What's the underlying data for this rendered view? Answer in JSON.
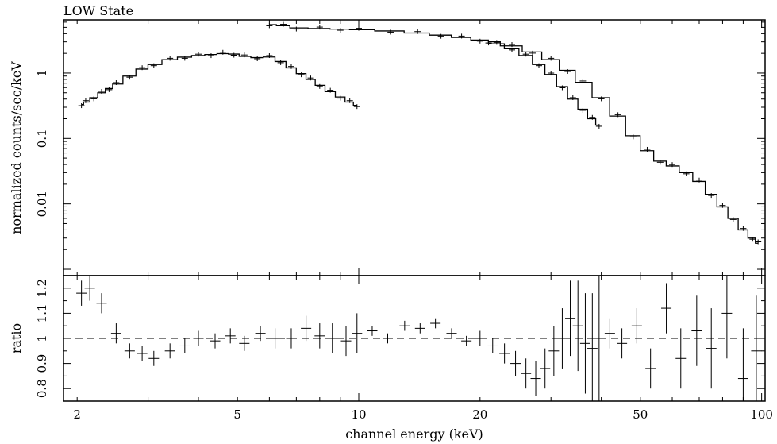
{
  "chart_data": {
    "type": "scatter",
    "title": "LOW State",
    "xlabel": "channel energy (keV)",
    "x_scale": "log",
    "xlim": [
      1.85,
      102
    ],
    "x_ticks": [
      "2",
      "5",
      "10",
      "20",
      "50",
      "100"
    ],
    "panels": [
      {
        "name": "spectrum",
        "ylabel": "normalized counts/sec/keV",
        "y_scale": "log",
        "ylim": [
          0.0008,
          6.5
        ],
        "y_ticks": [
          "0.01",
          "0.1",
          "1"
        ],
        "series": [
          {
            "name": "",
            "x": [
              2.05,
              2.1,
              2.2,
              2.3,
              2.4,
              2.5,
              2.7,
              2.9,
              3.1,
              3.4,
              3.7,
              4.0,
              4.3,
              4.6,
              4.9,
              5.2,
              5.6,
              6.0,
              6.4,
              6.8,
              7.2,
              7.6,
              8.0,
              8.5,
              9.0,
              9.5,
              9.9
            ],
            "y": [
              0.33,
              0.36,
              0.42,
              0.5,
              0.58,
              0.68,
              0.9,
              1.15,
              1.35,
              1.6,
              1.75,
              1.85,
              1.92,
              1.98,
              1.95,
              1.8,
              1.72,
              1.76,
              1.5,
              1.2,
              0.98,
              0.8,
              0.65,
              0.52,
              0.43,
              0.36,
              0.32
            ]
          },
          {
            "name": "",
            "x": [
              6.0,
              6.5,
              7.0,
              8.0,
              9.0,
              10.0,
              12.0,
              14.0,
              16.0,
              18.0,
              20.0,
              22.0,
              24.0,
              26.0,
              28.0,
              30.0,
              32.0,
              34.0,
              36.0,
              38.0,
              39.5
            ],
            "y": [
              5.5,
              5.3,
              4.9,
              4.8,
              4.7,
              4.6,
              4.4,
              4.1,
              3.8,
              3.5,
              3.2,
              2.8,
              2.35,
              1.85,
              1.35,
              0.95,
              0.62,
              0.4,
              0.28,
              0.2,
              0.16
            ]
          },
          {
            "name": "",
            "x": [
              21.0,
              24.0,
              27.0,
              30.0,
              33.0,
              36.0,
              40.0,
              44.0,
              48.0,
              52.0,
              56.0,
              60.0,
              65.0,
              70.0,
              75.0,
              80.0,
              85.0,
              90.0,
              95.0,
              98.0
            ],
            "y": [
              3.0,
              2.6,
              2.1,
              1.6,
              1.1,
              0.72,
              0.42,
              0.22,
              0.11,
              0.065,
              0.045,
              0.038,
              0.03,
              0.022,
              0.014,
              0.009,
              0.006,
              0.004,
              0.003,
              0.0025
            ]
          }
        ]
      },
      {
        "name": "residuals",
        "ylabel": "ratio",
        "y_scale": "linear",
        "ylim": [
          0.75,
          1.25
        ],
        "y_ticks": [
          "0.8",
          "0.9",
          "1",
          "1.1",
          "1.2"
        ],
        "reference_line": 1,
        "series": [
          {
            "name": "",
            "x": [
              2.05,
              2.15,
              2.3,
              2.5,
              2.7,
              2.9,
              3.1,
              3.4,
              3.7,
              4.0,
              4.4,
              4.8,
              5.2,
              5.7,
              6.2,
              6.8,
              7.4,
              8.0,
              8.6,
              9.3,
              9.9,
              10.8,
              11.8,
              13.0,
              14.2,
              15.5,
              17.0,
              18.5,
              20.0,
              21.5,
              23.0,
              24.5,
              26.0,
              27.5,
              29.0,
              30.5,
              32.0,
              33.5,
              35.0,
              36.5,
              38.0,
              39.5,
              42.0,
              45.0,
              49.0,
              53.0,
              58.0,
              63.0,
              69.0,
              75.0,
              82.0,
              90.0,
              97.0
            ],
            "y": [
              1.18,
              1.2,
              1.14,
              1.02,
              0.95,
              0.94,
              0.92,
              0.95,
              0.97,
              1.0,
              0.99,
              1.01,
              0.98,
              1.02,
              1.0,
              1.0,
              1.04,
              1.01,
              1.0,
              0.99,
              1.02,
              1.03,
              1.0,
              1.05,
              1.04,
              1.06,
              1.02,
              0.99,
              1.0,
              0.97,
              0.94,
              0.9,
              0.86,
              0.84,
              0.88,
              0.95,
              1.0,
              1.08,
              1.05,
              0.98,
              0.96,
              1.0,
              1.02,
              0.98,
              1.05,
              0.88,
              1.12,
              0.92,
              1.03,
              0.96,
              1.1,
              0.84,
              0.95
            ],
            "err": [
              0.05,
              0.05,
              0.04,
              0.04,
              0.03,
              0.03,
              0.03,
              0.03,
              0.03,
              0.03,
              0.03,
              0.03,
              0.03,
              0.03,
              0.04,
              0.04,
              0.05,
              0.05,
              0.06,
              0.06,
              0.08,
              0.02,
              0.02,
              0.02,
              0.02,
              0.02,
              0.02,
              0.02,
              0.03,
              0.03,
              0.04,
              0.05,
              0.06,
              0.07,
              0.08,
              0.1,
              0.12,
              0.15,
              0.18,
              0.2,
              0.22,
              0.25,
              0.06,
              0.06,
              0.07,
              0.08,
              0.1,
              0.12,
              0.14,
              0.16,
              0.18,
              0.2,
              0.22
            ]
          }
        ]
      }
    ]
  }
}
